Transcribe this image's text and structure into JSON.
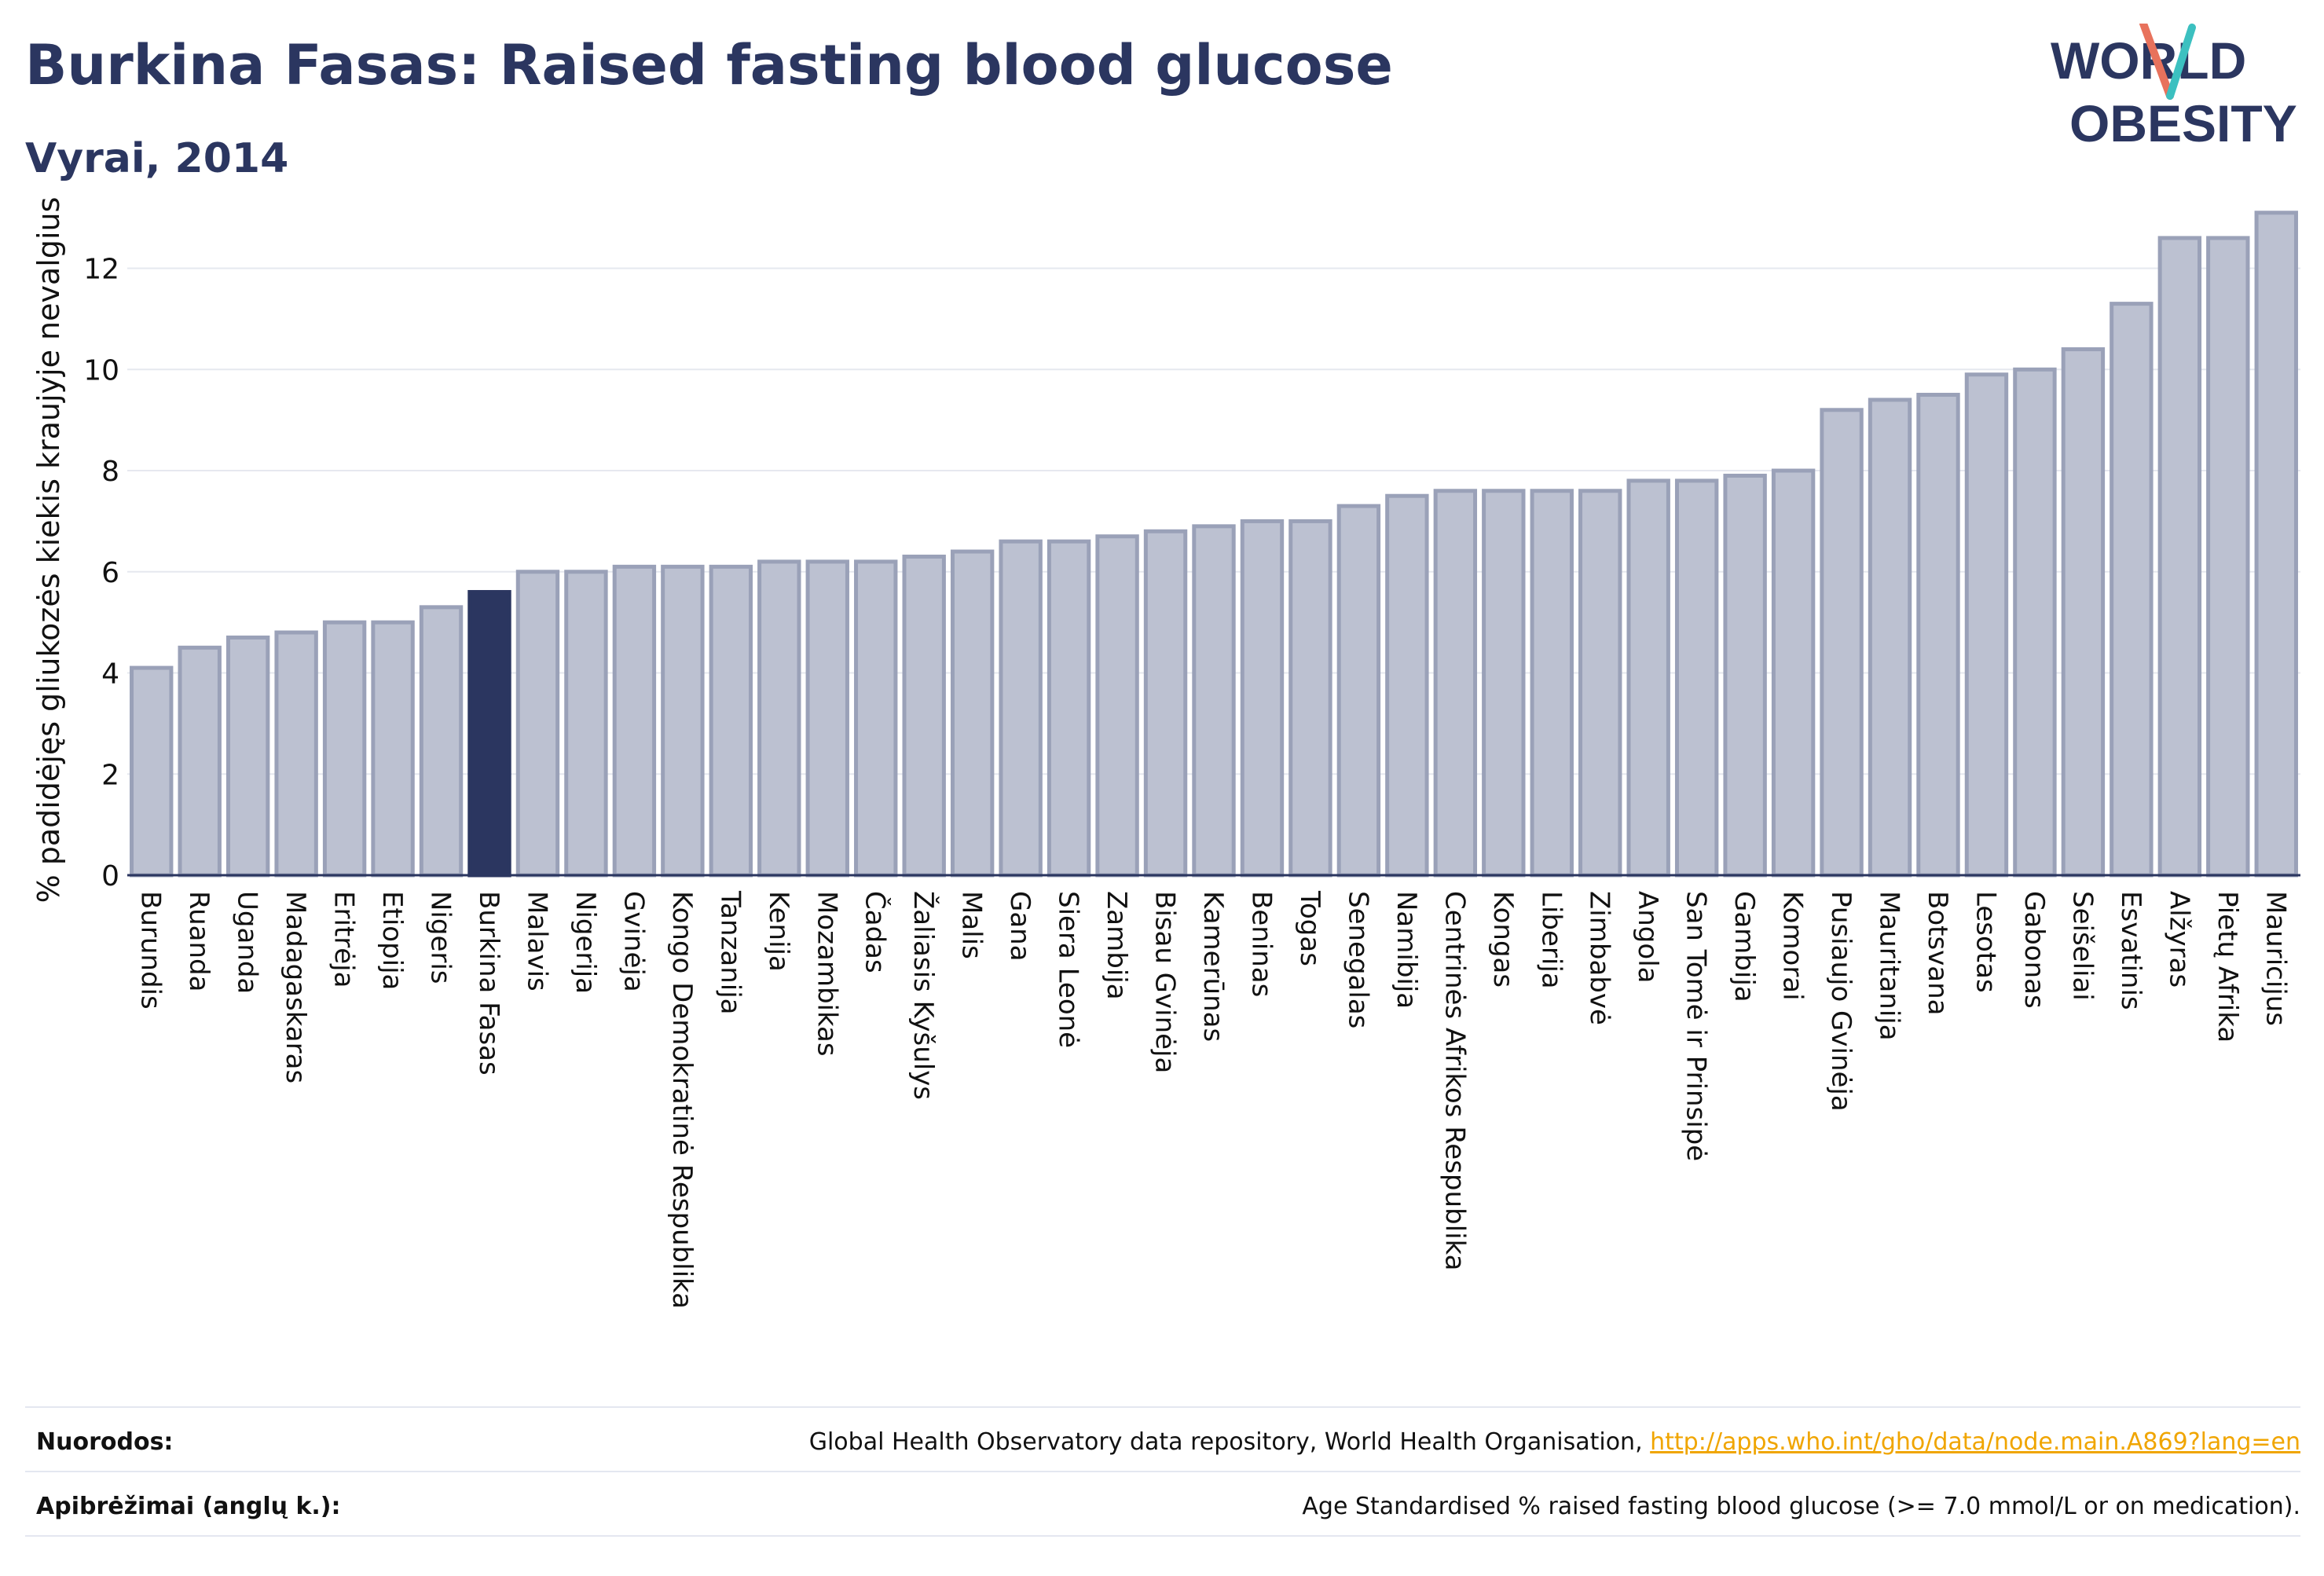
{
  "header": {
    "title": "Burkina Fasas: Raised fasting blood glucose",
    "subtitle": "Vyrai, 2014"
  },
  "logo": {
    "line1": "WORLD",
    "line2": "OBESITY"
  },
  "chart_data": {
    "type": "bar",
    "ylabel": "% padidėjęs gliukozės kiekis kraujyje nevalgius",
    "ylim": [
      0,
      13.5
    ],
    "yticks": [
      0,
      2,
      4,
      6,
      8,
      10,
      12
    ],
    "grid": true,
    "highlight": "Burkina Fasas",
    "colors": {
      "bar": "#bcc1d1",
      "bar_border": "#9aa1b8",
      "highlight": "#2b3660"
    },
    "categories": [
      "Burundis",
      "Ruanda",
      "Uganda",
      "Madagaskaras",
      "Eritrėja",
      "Etiopija",
      "Nigeris",
      "Burkina Fasas",
      "Malavis",
      "Nigerija",
      "Gvinėja",
      "Kongo Demokratinė Respublika",
      "Tanzanija",
      "Kenija",
      "Mozambikas",
      "Čadas",
      "Žaliasis Kyšulys",
      "Malis",
      "Gana",
      "Siera Leonė",
      "Zambija",
      "Bisau Gvinėja",
      "Kamerūnas",
      "Beninas",
      "Togas",
      "Senegalas",
      "Namibija",
      "Centrinės Afrikos Respublika",
      "Kongas",
      "Liberija",
      "Zimbabvė",
      "Angola",
      "San Tomė ir Prinsipė",
      "Gambija",
      "Komorai",
      "Pusiaujo Gvinėja",
      "Mauritanija",
      "Botsvana",
      "Lesotas",
      "Gabonas",
      "Seišeliai",
      "Esvatinis",
      "Alžyras",
      "Pietų Afrika",
      "Mauricijus"
    ],
    "values": [
      4.1,
      4.5,
      4.7,
      4.8,
      5.0,
      5.0,
      5.3,
      5.6,
      6.0,
      6.0,
      6.1,
      6.1,
      6.1,
      6.2,
      6.2,
      6.2,
      6.3,
      6.4,
      6.6,
      6.6,
      6.7,
      6.8,
      6.9,
      7.0,
      7.0,
      7.3,
      7.5,
      7.6,
      7.6,
      7.6,
      7.6,
      7.8,
      7.8,
      7.9,
      8.0,
      9.2,
      9.4,
      9.5,
      9.9,
      10.0,
      10.4,
      11.3,
      12.6,
      12.6,
      13.1
    ]
  },
  "footer": {
    "sources_label": "Nuorodos:",
    "sources_text": "Global Health Observatory data repository, World Health Organisation, ",
    "sources_link": "http://apps.who.int/gho/data/node.main.A869?lang=en",
    "definitions_label": "Apibrėžimai (anglų k.):",
    "definitions_text": "Age Standardised % raised fasting blood glucose (>= 7.0 mmol/L or on medication)."
  }
}
